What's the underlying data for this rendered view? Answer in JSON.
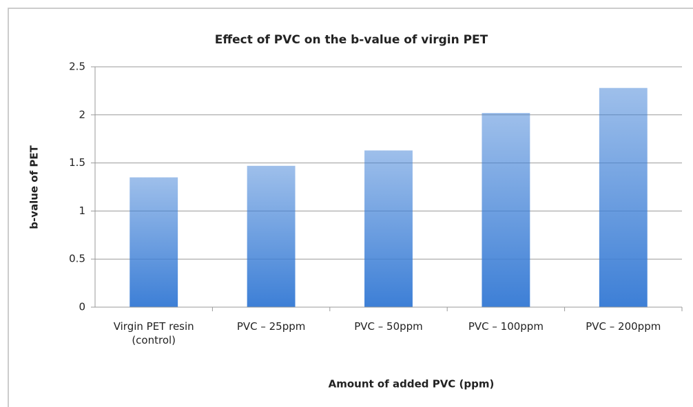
{
  "chart_data": {
    "type": "bar",
    "title": "Effect of PVC on the b-value of virgin PET",
    "x_label": "Amount of added PVC (ppm)",
    "y_label": "b-value of PET",
    "categories": [
      "Virgin PET resin (control)",
      "PVC – 25ppm",
      "PVC – 50ppm",
      "PVC – 100ppm",
      "PVC – 200ppm"
    ],
    "values": [
      1.35,
      1.47,
      1.63,
      2.02,
      2.28
    ],
    "color": "#3d7fd6",
    "ylim": [
      0,
      2.5
    ],
    "yticks": [
      0,
      0.5,
      1,
      1.5,
      2,
      2.5
    ],
    "grid": true
  }
}
